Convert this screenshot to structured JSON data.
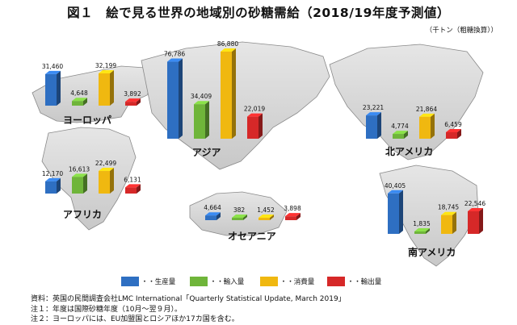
{
  "title": "図１　絵で見る世界の地域別の砂糖需給（2018/19年度予測値）",
  "unit": "（千トン（粗糖換算））",
  "legend": [
    {
      "label": "・・生産量",
      "color": "#2e6fc2"
    },
    {
      "label": "・・輸入量",
      "color": "#6fb53a"
    },
    {
      "label": "・・消費量",
      "color": "#f0b810"
    },
    {
      "label": "・・輸出量",
      "color": "#d62828"
    }
  ],
  "notes": [
    "資料：英国の民間調査会社LMC International「Quarterly Statistical Update, March 2019」",
    "注１：年度は国際砂糖年度（10月～翌９月）。",
    "注２：ヨーロッパには、EU加盟国とロシアほか17カ国を含む。"
  ],
  "chart_data": {
    "type": "bar",
    "series_names": [
      "生産量",
      "輸入量",
      "消費量",
      "輸出量"
    ],
    "colors": [
      "#2e6fc2",
      "#6fb53a",
      "#f0b810",
      "#d62828"
    ],
    "regions": [
      {
        "name": "ヨーロッパ",
        "values": [
          31460,
          4648,
          32199,
          3892
        ],
        "labels": [
          "31,460",
          "4,648",
          "32,199",
          "3,892"
        ]
      },
      {
        "name": "アフリカ",
        "values": [
          12170,
          16613,
          22499,
          6131
        ],
        "labels": [
          "12,170",
          "16,613",
          "22,499",
          "6,131"
        ]
      },
      {
        "name": "アジア",
        "values": [
          76786,
          34409,
          86880,
          22019
        ],
        "labels": [
          "76,786",
          "34,409",
          "86,880",
          "22,019"
        ]
      },
      {
        "name": "オセアニア",
        "values": [
          4664,
          382,
          1452,
          3898
        ],
        "labels": [
          "4,664",
          "382",
          "1,452",
          "3,898"
        ]
      },
      {
        "name": "北アメリカ",
        "values": [
          23221,
          4774,
          21864,
          6459
        ],
        "labels": [
          "23,221",
          "4,774",
          "21,864",
          "6,459"
        ]
      },
      {
        "name": "南アメリカ",
        "values": [
          40405,
          1835,
          18745,
          22546
        ],
        "labels": [
          "40,405",
          "1,835",
          "18,745",
          "22,546"
        ]
      }
    ]
  }
}
